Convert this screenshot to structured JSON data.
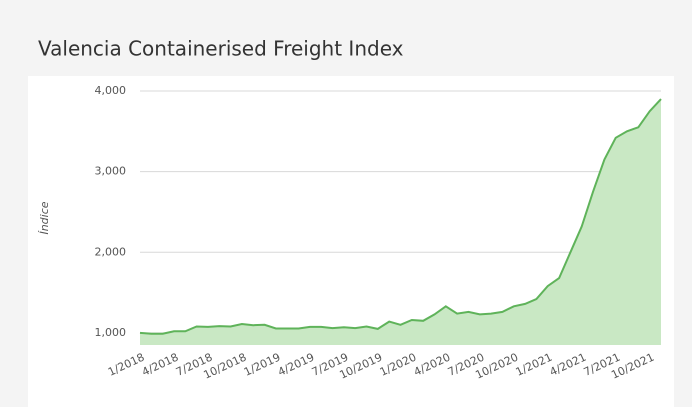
{
  "chart_data": {
    "type": "area",
    "title": "Valencia Containerised Freight Index",
    "y_label": "Índice",
    "categories": [
      "1/2018",
      null,
      null,
      "4/2018",
      null,
      null,
      "7/2018",
      null,
      null,
      "10/2018",
      null,
      null,
      "1/2019",
      null,
      null,
      "4/2019",
      null,
      null,
      "7/2019",
      null,
      null,
      "10/2019",
      null,
      null,
      "1/2020",
      null,
      null,
      "4/2020",
      null,
      null,
      "7/2020",
      null,
      null,
      "10/2020",
      null,
      null,
      "1/2021",
      null,
      null,
      "4/2021",
      null,
      null,
      "7/2021",
      null,
      null,
      "10/2021",
      null
    ],
    "values": [
      1000,
      990,
      990,
      1020,
      1020,
      1080,
      1075,
      1085,
      1080,
      1110,
      1095,
      1100,
      1055,
      1055,
      1055,
      1075,
      1075,
      1060,
      1070,
      1060,
      1080,
      1050,
      1140,
      1100,
      1160,
      1150,
      1230,
      1330,
      1240,
      1260,
      1230,
      1240,
      1260,
      1330,
      1360,
      1420,
      1580,
      1680,
      2000,
      2320,
      2750,
      3150,
      3420,
      3500,
      3550,
      3750,
      3900
    ],
    "color": "#5fb35a",
    "fill_color": "#c9e8c4",
    "ylim": [
      850,
      4000
    ],
    "yticks": [
      {
        "value": 1000,
        "label": "1,000"
      },
      {
        "value": 2000,
        "label": "2,000"
      },
      {
        "value": 3000,
        "label": "3,000"
      },
      {
        "value": 4000,
        "label": "4,000"
      }
    ],
    "grid": true
  }
}
